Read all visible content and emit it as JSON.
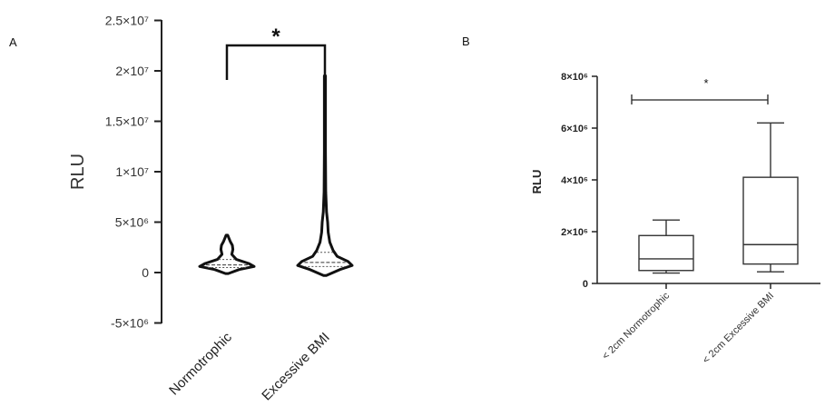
{
  "chart_data": [
    {
      "panel": "A",
      "type": "violin",
      "ylabel": "RLU",
      "ylim": [
        -5000000,
        25000000
      ],
      "y_ticks": [
        {
          "v": -5000000,
          "label": "-5×10⁶"
        },
        {
          "v": 0,
          "label": "0"
        },
        {
          "v": 5000000,
          "label": "5×10⁶"
        },
        {
          "v": 10000000,
          "label": "1×10⁷"
        },
        {
          "v": 15000000,
          "label": "1.5×10⁷"
        },
        {
          "v": 20000000,
          "label": "2×10⁷"
        },
        {
          "v": 25000000,
          "label": "2.5×10⁷"
        }
      ],
      "categories": [
        "Normotrophic",
        "Excessive BMI"
      ],
      "series": [
        {
          "category": "Normotrophic",
          "min": -100000,
          "max": 3700000,
          "q1": 500000,
          "median": 750000,
          "q3": 1300000,
          "density": [
            [
              -100000,
              0.05
            ],
            [
              300000,
              0.45
            ],
            [
              600000,
              1.0
            ],
            [
              900000,
              0.8
            ],
            [
              1300000,
              0.35
            ],
            [
              1800000,
              0.18
            ],
            [
              2300000,
              0.22
            ],
            [
              2700000,
              0.2
            ],
            [
              3100000,
              0.12
            ],
            [
              3700000,
              0.03
            ]
          ]
        },
        {
          "category": "Excessive BMI",
          "min": -300000,
          "max": 19500000,
          "q1": 600000,
          "median": 1000000,
          "q3": 2000000,
          "density": [
            [
              -300000,
              0.05
            ],
            [
              300000,
              0.55
            ],
            [
              700000,
              1.0
            ],
            [
              1100000,
              0.85
            ],
            [
              1600000,
              0.45
            ],
            [
              2200000,
              0.3
            ],
            [
              3000000,
              0.18
            ],
            [
              4000000,
              0.12
            ],
            [
              5000000,
              0.1
            ],
            [
              6000000,
              0.06
            ],
            [
              8000000,
              0.03
            ],
            [
              12000000,
              0.02
            ],
            [
              16000000,
              0.02
            ],
            [
              19500000,
              0.02
            ]
          ]
        }
      ],
      "significance": "*"
    },
    {
      "panel": "B",
      "type": "box",
      "ylabel": "RLU",
      "ylim": [
        0,
        8000000
      ],
      "y_ticks": [
        {
          "v": 0,
          "label": "0"
        },
        {
          "v": 2000000,
          "label": "2×10⁶"
        },
        {
          "v": 4000000,
          "label": "4×10⁶"
        },
        {
          "v": 6000000,
          "label": "6×10⁶"
        },
        {
          "v": 8000000,
          "label": "8×10⁶"
        }
      ],
      "categories": [
        "< 2cm Normotrophic",
        "< 2cm Excessive BMI"
      ],
      "series": [
        {
          "category": "< 2cm Normotrophic",
          "min": 400000,
          "q1": 500000,
          "median": 950000,
          "q3": 1850000,
          "max": 2450000
        },
        {
          "category": "< 2cm Excessive BMI",
          "min": 450000,
          "q1": 750000,
          "median": 1500000,
          "q3": 4100000,
          "max": 6200000
        }
      ],
      "significance": "*"
    }
  ]
}
